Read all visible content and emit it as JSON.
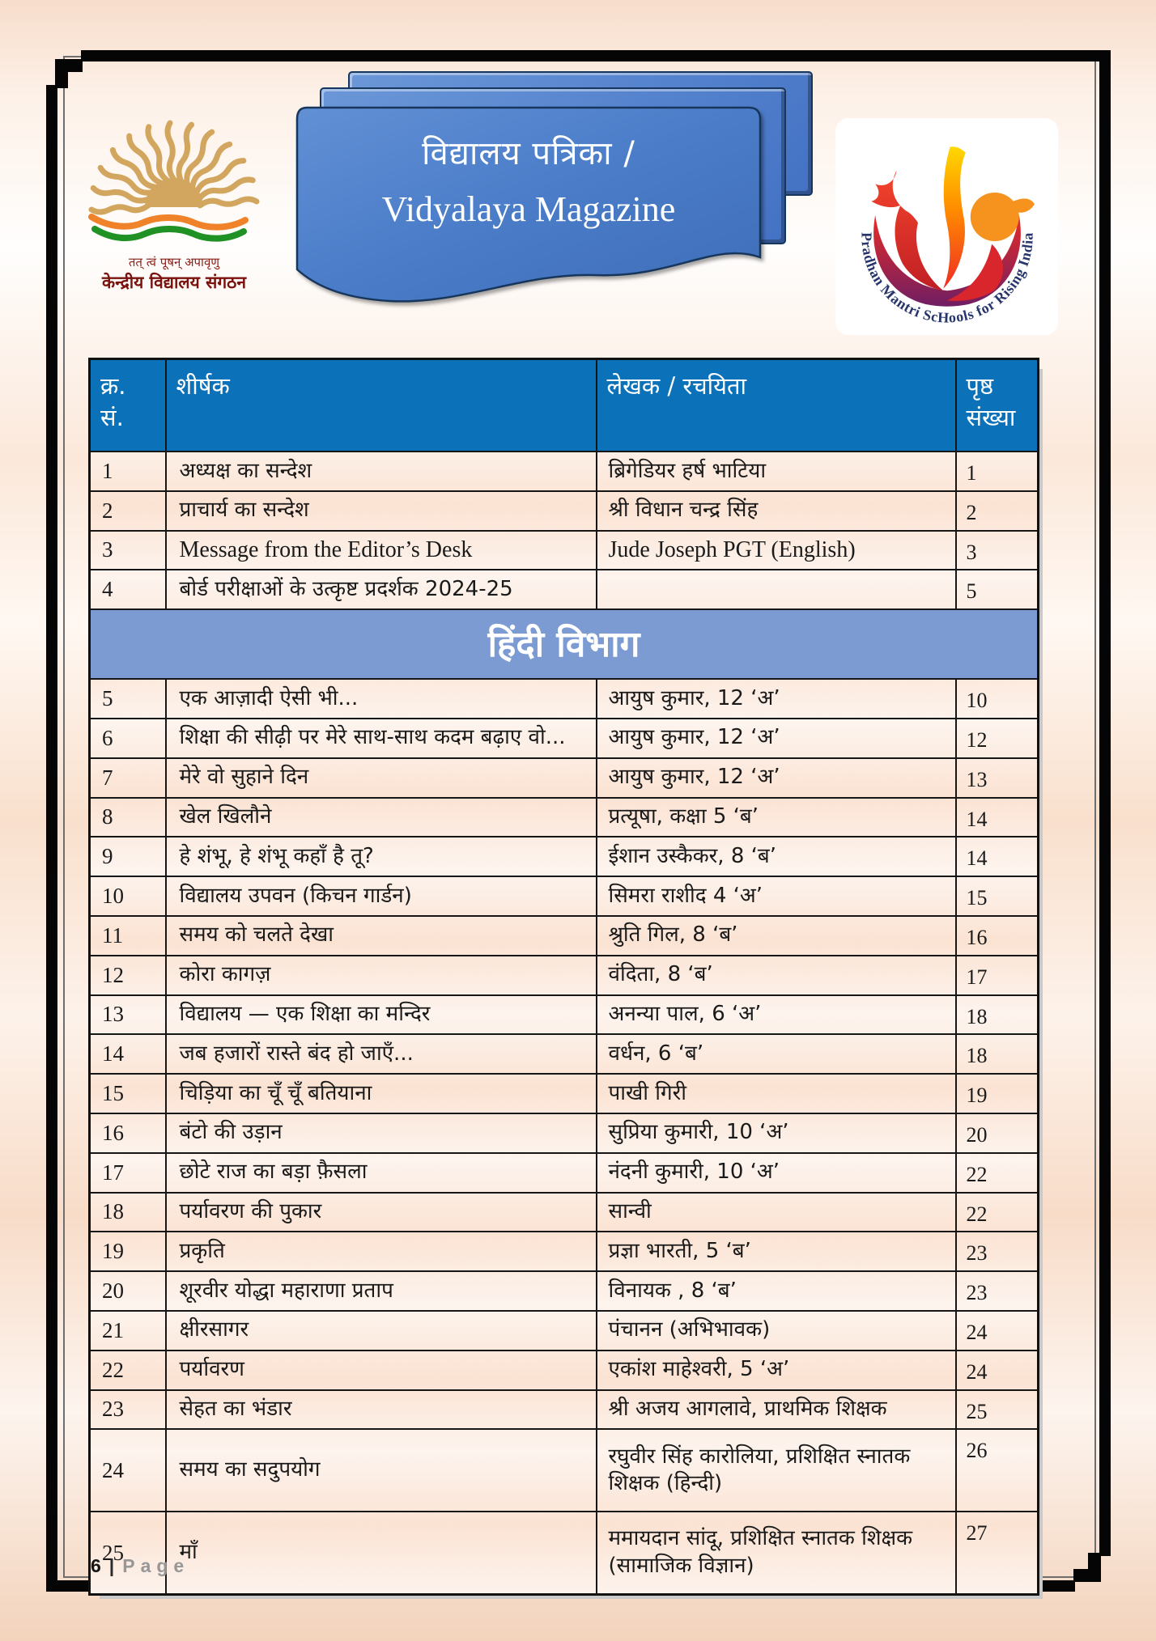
{
  "banner": {
    "title_hi": "विद्यालय पत्रिका /",
    "title_en": "Vidyalaya Magazine"
  },
  "logos": {
    "kvs": {
      "motto": "तत् त्वं पूषन् अपावृणु",
      "name": "केन्द्रीय विद्यालय संगठन"
    },
    "pmshri": {
      "ring_text": "Pradhan Mantri ScHools for Rising India"
    }
  },
  "table": {
    "headers": {
      "serial": "क्र. सं.",
      "title": "शीर्षक",
      "author": "लेखक / रचयिता",
      "page": "पृष्ठ संख्या"
    },
    "section": "हिंदी विभाग",
    "rows_top": [
      {
        "sn": "1",
        "title": "अध्यक्ष का सन्देश",
        "author": "ब्रिगेडियर हर्ष भाटिया",
        "page": "1"
      },
      {
        "sn": "2",
        "title": "प्राचार्य का सन्देश",
        "author": "श्री विधान चन्द्र सिंह",
        "page": "2"
      },
      {
        "sn": "3",
        "title": "Message from the Editor’s Desk",
        "author": "Jude Joseph PGT (English)",
        "page": "3",
        "latin": true
      },
      {
        "sn": "4",
        "title": "बोर्ड परीक्षाओं के उत्कृष्ट प्रदर्शक 2024-25",
        "author": "",
        "page": "5"
      }
    ],
    "rows_hindi": [
      {
        "sn": "5",
        "title": "एक आज़ादी ऐसी भी...",
        "author": "आयुष कुमार, 12 ‘अ’",
        "page": "10"
      },
      {
        "sn": "6",
        "title": "शिक्षा की सीढ़ी पर मेरे साथ-साथ कदम बढ़ाए वो...",
        "author": "आयुष कुमार, 12 ‘अ’",
        "page": "12"
      },
      {
        "sn": "7",
        "title": "मेरे वो सुहाने दिन",
        "author": "आयुष कुमार, 12 ‘अ’",
        "page": "13"
      },
      {
        "sn": "8",
        "title": "खेल खिलौने",
        "author": "प्रत्यूषा, कक्षा 5 ‘ब’",
        "page": "14"
      },
      {
        "sn": "9",
        "title": "हे शंभू, हे शंभू कहाँ है तू?",
        "author": "ईशान उस्कैकर, 8 ‘ब’",
        "page": "14"
      },
      {
        "sn": "10",
        "title": "विद्यालय उपवन   (किचन गार्डन)",
        "author": "सिमरा राशीद  4 ‘अ’",
        "page": "15"
      },
      {
        "sn": "11",
        "title": "समय को चलते देखा",
        "author": "श्रुति गिल, 8 ‘ब’",
        "page": "16"
      },
      {
        "sn": "12",
        "title": "कोरा कागज़",
        "author": "वंदिता, 8 ‘ब’",
        "page": "17"
      },
      {
        "sn": "13",
        "title": "विद्यालय — एक शिक्षा का मन्दिर",
        "author": "अनन्या पाल, 6 ‘अ’",
        "page": "18"
      },
      {
        "sn": "14",
        "title": "जब हजारों रास्ते बंद हो जाएँ...",
        "author": "वर्धन, 6 ‘ब’",
        "page": "18"
      },
      {
        "sn": "15",
        "title": "चिड़िया का चूँ चूँ बतियाना",
        "author": "पाखी गिरी",
        "page": "19"
      },
      {
        "sn": "16",
        "title": "बंटो की उड़ान",
        "author": "सुप्रिया कुमारी, 10 ‘अ’",
        "page": "20"
      },
      {
        "sn": "17",
        "title": "छोटे राज का बड़ा फ़ैसला",
        "author": "नंदनी कुमारी, 10 ‘अ’",
        "page": "22"
      },
      {
        "sn": "18",
        "title": "पर्यावरण की पुकार",
        "author": "सान्वी",
        "page": "22"
      },
      {
        "sn": "19",
        "title": "प्रकृति",
        "author": "प्रज्ञा भारती, 5 ‘ब’",
        "page": "23"
      },
      {
        "sn": "20",
        "title": "शूरवीर योद्धा महाराणा प्रताप",
        "author": "विनायक , 8 ‘ब’",
        "page": "23"
      },
      {
        "sn": "21",
        "title": "क्षीरसागर",
        "author": "पंचानन (अभिभावक)",
        "page": "24"
      },
      {
        "sn": "22",
        "title": "पर्यावरण",
        "author": "एकांश माहेश्वरी, 5 ‘अ’",
        "page": "24"
      },
      {
        "sn": "23",
        "title": "सेहत का भंडार",
        "author": "श्री अजय आगलावे, प्राथमिक शिक्षक",
        "page": "25"
      },
      {
        "sn": "24",
        "title": "समय का सदुपयोग",
        "author": "रघुवीर सिंह कारोलिया, प्रशिक्षित स्नातक शिक्षक (हिन्दी)",
        "page": "26",
        "tall": true
      },
      {
        "sn": "25",
        "title": "माँ",
        "author": "ममायदान सांदू, प्रशिक्षित स्नातक शिक्षक (सामाजिक विज्ञान)",
        "page": "27",
        "tall": true
      }
    ]
  },
  "footer": {
    "number": "6",
    "separator": "|",
    "label": "Page"
  },
  "colors": {
    "header_blue": "#0b72ba",
    "section_blue": "#7d9bd3",
    "banner_blue": "#4a7cc8",
    "banner_border": "#17365d",
    "row_peach": "#fbe3d3",
    "frame_black": "#050505",
    "kvs_gold": "#d2a65e",
    "kvs_maroon": "#7a130d",
    "pm_navy": "#27356d"
  }
}
